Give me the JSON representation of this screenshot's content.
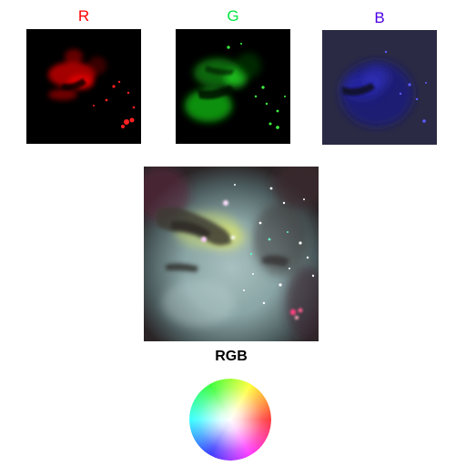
{
  "channels": {
    "r": {
      "label": "R",
      "color": "#ff0000"
    },
    "g": {
      "label": "G",
      "color": "#00e640"
    },
    "b": {
      "label": "B",
      "color": "#4b00e6"
    }
  },
  "composite": {
    "label": "RGB"
  },
  "colorwheel": {
    "icon": "color-wheel-icon"
  }
}
